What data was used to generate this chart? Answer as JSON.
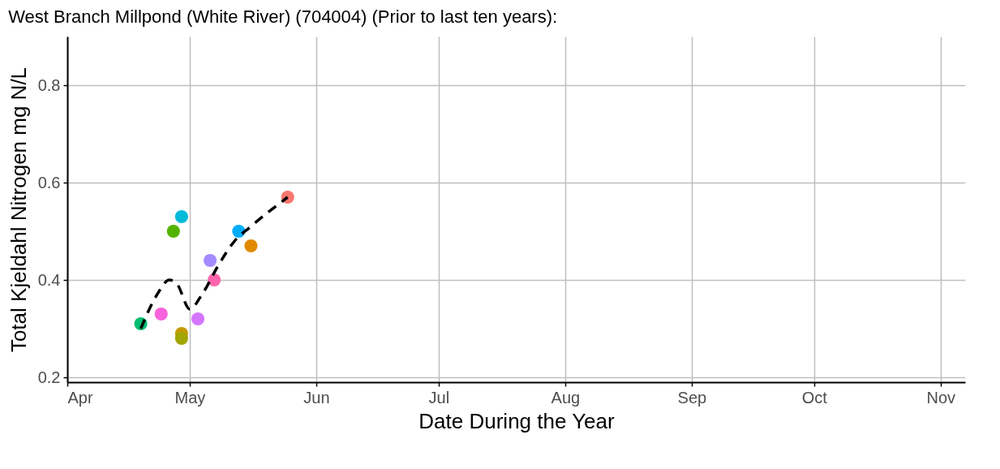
{
  "chart_data": {
    "type": "scatter",
    "title": "West Branch Millpond (White River) (704004)  (Prior to last ten years):",
    "xlabel": "Date During the Year",
    "ylabel": "Total Kjeldahl Nitrogen mg N/L",
    "xlim": [
      "--04-01",
      "--11-07"
    ],
    "xticks": [
      {
        "value": "--04-01",
        "label": "Apr"
      },
      {
        "value": "--05-01",
        "label": "May"
      },
      {
        "value": "--06-01",
        "label": "Jun"
      },
      {
        "value": "--07-01",
        "label": "Jul"
      },
      {
        "value": "--08-01",
        "label": "Aug"
      },
      {
        "value": "--09-01",
        "label": "Sep"
      },
      {
        "value": "--10-01",
        "label": "Oct"
      },
      {
        "value": "--11-01",
        "label": "Nov"
      }
    ],
    "ylim": [
      0.19,
      0.9
    ],
    "yticks": [
      0.2,
      0.4,
      0.6,
      0.8
    ],
    "grid": true,
    "series": [
      {
        "marker": "circle",
        "x": [
          "--04-19",
          "--04-24",
          "--04-27",
          "--04-29",
          "--04-29",
          "--04-29",
          "--05-03",
          "--05-06",
          "--05-07",
          "--05-13",
          "--05-16",
          "--05-25"
        ],
        "values": [
          0.31,
          0.33,
          0.5,
          0.53,
          0.29,
          0.28,
          0.32,
          0.44,
          0.4,
          0.5,
          0.47,
          0.57
        ],
        "colors": [
          "#00be70",
          "#f962dd",
          "#53b400",
          "#00bbda",
          "#c49a00",
          "#a3a500",
          "#d575fe",
          "#a58aff",
          "#ff65ac",
          "#00acfc",
          "#e18a00",
          "#f8766d"
        ]
      },
      {
        "type": "line",
        "color": "#000000",
        "line_style": "dashed",
        "x": [
          "--04-19",
          "--04-23",
          "--04-26",
          "--04-28",
          "--05-01",
          "--05-04",
          "--05-08",
          "--05-12",
          "--05-16",
          "--05-25"
        ],
        "values": [
          0.3,
          0.37,
          0.4,
          0.39,
          0.34,
          0.37,
          0.43,
          0.48,
          0.51,
          0.57
        ]
      }
    ]
  }
}
